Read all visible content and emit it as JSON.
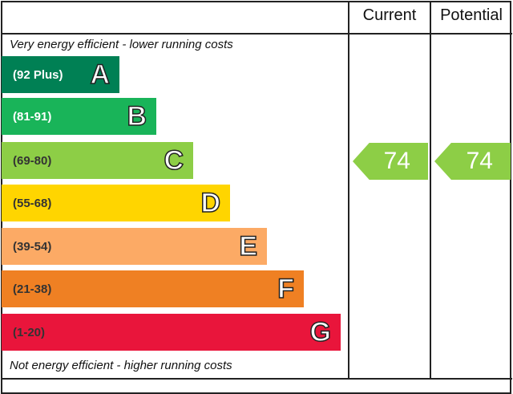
{
  "chart_data": {
    "type": "bar",
    "header": {
      "current": "Current",
      "potential": "Potential"
    },
    "top_note": "Very energy efficient - lower running costs",
    "bottom_note": "Not energy efficient - higher running costs",
    "bands": [
      {
        "range": "(92 Plus)",
        "letter": "A",
        "color": "#008054"
      },
      {
        "range": "(81-91)",
        "letter": "B",
        "color": "#19b459"
      },
      {
        "range": "(69-80)",
        "letter": "C",
        "color": "#8dce46"
      },
      {
        "range": "(55-68)",
        "letter": "D",
        "color": "#ffd500"
      },
      {
        "range": "(39-54)",
        "letter": "E",
        "color": "#fcaa65"
      },
      {
        "range": "(21-38)",
        "letter": "F",
        "color": "#ef8023"
      },
      {
        "range": "(1-20)",
        "letter": "G",
        "color": "#e9153b"
      }
    ],
    "current": {
      "value": 74,
      "band": "C"
    },
    "potential": {
      "value": 74,
      "band": "C"
    }
  }
}
